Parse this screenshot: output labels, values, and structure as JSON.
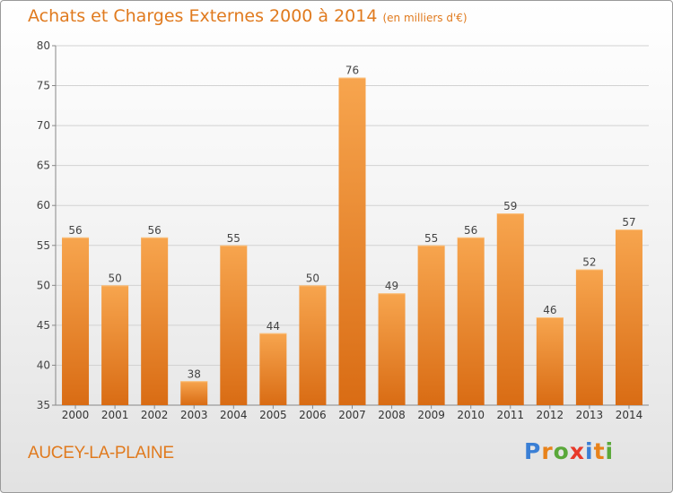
{
  "header": {
    "title": "Achats et Charges Externes 2000 à 2014",
    "subtitle": "(en milliers d'€)"
  },
  "footer": {
    "town": "AUCEY-LA-PLAINE",
    "logo_text": "Proxiti",
    "logo_colors": [
      "#3a7fd5",
      "#e8821a",
      "#5aa83a",
      "#e83a2a",
      "#3a7fd5",
      "#e8821a",
      "#5aa83a"
    ]
  },
  "chart_data": {
    "type": "bar",
    "categories": [
      "2000",
      "2001",
      "2002",
      "2003",
      "2004",
      "2005",
      "2006",
      "2007",
      "2008",
      "2009",
      "2010",
      "2011",
      "2012",
      "2013",
      "2014"
    ],
    "values": [
      56,
      50,
      56,
      38,
      55,
      44,
      50,
      76,
      49,
      55,
      56,
      59,
      46,
      52,
      57
    ],
    "ylim": [
      35,
      80
    ],
    "yticks": [
      35,
      40,
      45,
      50,
      55,
      60,
      65,
      70,
      75,
      80
    ],
    "grid": true,
    "bar_color_top": "#f7a54e",
    "bar_color_bottom": "#d96c14"
  }
}
